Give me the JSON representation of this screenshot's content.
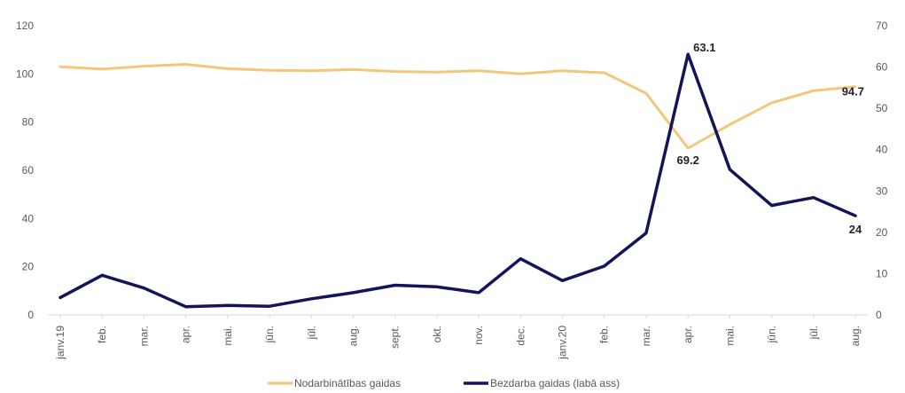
{
  "chart_data": {
    "type": "line",
    "title": "",
    "xlabel": "",
    "ylabel": "",
    "categories": [
      "janv.19",
      "feb.",
      "mar.",
      "apr.",
      "mai.",
      "jūn.",
      "jūl.",
      "aug.",
      "sept.",
      "okt.",
      "nov.",
      "dec.",
      "janv.20",
      "feb.",
      "mar.",
      "apr.",
      "mai.",
      "jūn.",
      "jūl.",
      "aug."
    ],
    "y_left": {
      "min": 0,
      "max": 120,
      "ticks": [
        "0",
        "20",
        "40",
        "60",
        "80",
        "100",
        "120"
      ]
    },
    "y_right": {
      "min": 0,
      "max": 70,
      "ticks": [
        "0",
        "10",
        "20",
        "30",
        "40",
        "50",
        "60",
        "70"
      ]
    },
    "grid": false,
    "legend_position": "bottom",
    "series": [
      {
        "name": "Nodarbinātības gaidas",
        "axis": "left",
        "color": "#F2C77A",
        "values": [
          103.0,
          102.0,
          103.2,
          104.0,
          102.2,
          101.5,
          101.3,
          101.8,
          101.0,
          100.8,
          101.3,
          100.0,
          101.3,
          100.5,
          92.0,
          69.2,
          79.0,
          88.0,
          93.0,
          94.7
        ]
      },
      {
        "name": "Bezdarba gaidas (labā ass)",
        "axis": "right",
        "color": "#14145A",
        "values": [
          4.2,
          9.6,
          6.5,
          2.0,
          2.3,
          2.1,
          3.9,
          5.4,
          7.2,
          6.8,
          5.4,
          13.6,
          8.3,
          11.8,
          19.8,
          63.1,
          35.2,
          26.5,
          28.4,
          24.0
        ]
      }
    ],
    "annotations": [
      {
        "series": 1,
        "index": 15,
        "text": "63.1"
      },
      {
        "series": 0,
        "index": 15,
        "text": "69.2"
      },
      {
        "series": 0,
        "index": 19,
        "text": "94.7"
      },
      {
        "series": 1,
        "index": 19,
        "text": "24"
      }
    ]
  }
}
